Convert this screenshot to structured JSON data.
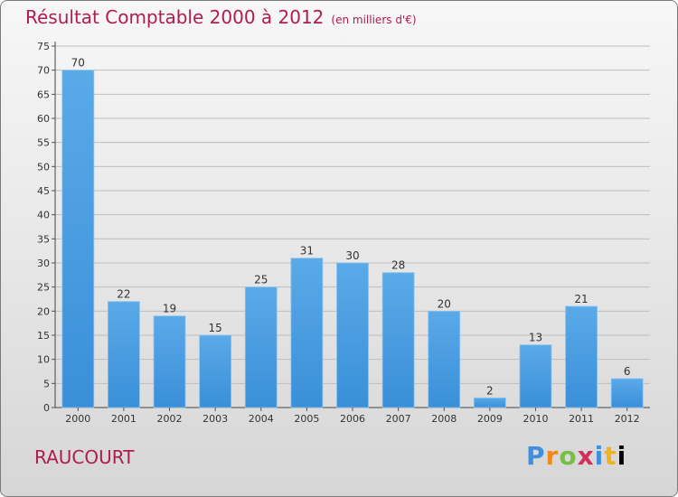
{
  "title": "Résultat Comptable 2000 à 2012",
  "subtitle": "(en milliers d'€)",
  "town": "RAUCOURT",
  "logo": {
    "letters": [
      "P",
      "r",
      "o",
      "x",
      "i",
      "t",
      "i"
    ]
  },
  "colors": {
    "bar": "#3a8fd8",
    "bar_light": "#5aaae8",
    "title": "#b01d4b",
    "grid": "#bdbdbd"
  },
  "chart_data": {
    "type": "bar",
    "title": "Résultat Comptable 2000 à 2012",
    "subtitle": "(en milliers d'€)",
    "categories": [
      "2000",
      "2001",
      "2002",
      "2003",
      "2004",
      "2005",
      "2006",
      "2007",
      "2008",
      "2009",
      "2010",
      "2011",
      "2012"
    ],
    "values": [
      70,
      22,
      19,
      15,
      25,
      31,
      30,
      28,
      20,
      2,
      13,
      21,
      6
    ],
    "ylim": [
      0,
      75
    ],
    "yticks": [
      0,
      5,
      10,
      15,
      20,
      25,
      30,
      35,
      40,
      45,
      50,
      55,
      60,
      65,
      70,
      75
    ],
    "xlabel": "",
    "ylabel": "",
    "grid": true
  }
}
